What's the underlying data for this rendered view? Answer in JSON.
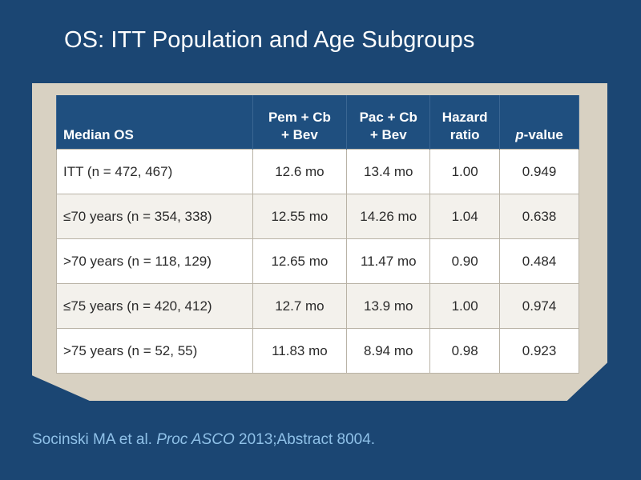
{
  "slide": {
    "title": "OS: ITT Population and Age Subgroups"
  },
  "table": {
    "headers": {
      "label": "Median OS",
      "pem": [
        "Pem + Cb",
        "+ Bev"
      ],
      "pac": [
        "Pac + Cb",
        "+ Bev"
      ],
      "hr": [
        "Hazard",
        "ratio"
      ],
      "p_prefix": "p",
      "p_suffix": "-value"
    },
    "rows": [
      {
        "label": "ITT (n = 472, 467)",
        "pem": "12.6 mo",
        "pac": "13.4 mo",
        "hr": "1.00",
        "p": "0.949"
      },
      {
        "label": "≤70 years (n = 354, 338)",
        "pem": "12.55 mo",
        "pac": "14.26 mo",
        "hr": "1.04",
        "p": "0.638"
      },
      {
        "label": ">70 years (n = 118, 129)",
        "pem": "12.65 mo",
        "pac": "11.47 mo",
        "hr": "0.90",
        "p": "0.484"
      },
      {
        "label": "≤75 years (n = 420, 412)",
        "pem": "12.7 mo",
        "pac": "13.9 mo",
        "hr": "1.00",
        "p": "0.974"
      },
      {
        "label": ">75 years (n = 52, 55)",
        "pem": "11.83 mo",
        "pac": "8.94 mo",
        "hr": "0.98",
        "p": "0.923"
      }
    ]
  },
  "citation": {
    "authors": "Socinski MA et al. ",
    "journal": "Proc ASCO",
    "details": " 2013;Abstract 8004."
  },
  "colors": {
    "background": "#1b4673",
    "frame": "#d8d1c2",
    "header": "#1f4f7f",
    "citation": "#8fc1e8"
  }
}
